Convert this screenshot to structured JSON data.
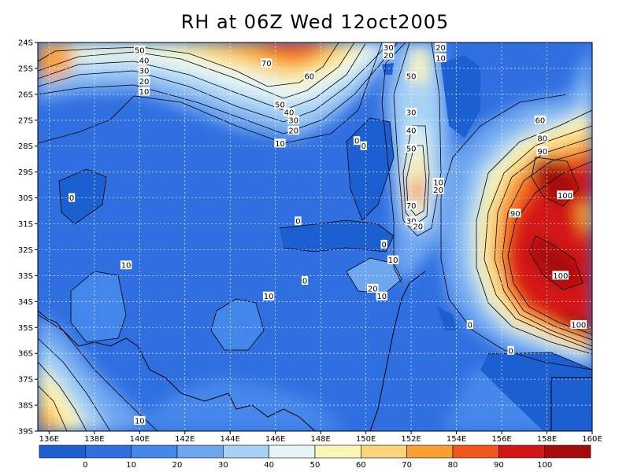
{
  "title": "RH at 06Z Wed 12oct2005",
  "chart_data": {
    "type": "heatmap",
    "title": "RH at 06Z Wed 12oct2005",
    "lon_ticks": [
      "136E",
      "138E",
      "140E",
      "142E",
      "144E",
      "146E",
      "148E",
      "150E",
      "152E",
      "154E",
      "156E",
      "158E",
      "160E"
    ],
    "lat_ticks": [
      "24S",
      "25S",
      "26S",
      "27S",
      "28S",
      "29S",
      "30S",
      "31S",
      "32S",
      "33S",
      "34S",
      "35S",
      "36S",
      "37S",
      "38S",
      "39S"
    ],
    "lon_range": [
      135.5,
      160
    ],
    "lat_range": [
      -39,
      -24
    ],
    "grid": true,
    "colorbar": {
      "levels": [
        "0",
        "10",
        "20",
        "30",
        "40",
        "50",
        "60",
        "70",
        "80",
        "90",
        "100"
      ],
      "colors": [
        "#1b5fd0",
        "#2f6fe0",
        "#4487ea",
        "#6fa6f0",
        "#a6d2f5",
        "#e6f5f5",
        "#fbf6b3",
        "#fbd47c",
        "#f9a033",
        "#f3561e",
        "#d51616",
        "#a60b0b"
      ]
    },
    "contour_labels": [
      {
        "t": "50",
        "lon": 140.0,
        "lat": -24.3
      },
      {
        "t": "40",
        "lon": 140.2,
        "lat": -24.7
      },
      {
        "t": "30",
        "lon": 140.2,
        "lat": -25.1
      },
      {
        "t": "20",
        "lon": 140.2,
        "lat": -25.5
      },
      {
        "t": "10",
        "lon": 140.2,
        "lat": -25.9
      },
      {
        "t": "70",
        "lon": 145.6,
        "lat": -24.8
      },
      {
        "t": "60",
        "lon": 147.5,
        "lat": -25.3
      },
      {
        "t": "50",
        "lon": 146.2,
        "lat": -26.4
      },
      {
        "t": "40",
        "lon": 146.6,
        "lat": -26.7
      },
      {
        "t": "30",
        "lon": 146.8,
        "lat": -27.0
      },
      {
        "t": "20",
        "lon": 146.8,
        "lat": -27.4
      },
      {
        "t": "10",
        "lon": 146.2,
        "lat": -27.9
      },
      {
        "t": "30",
        "lon": 151.0,
        "lat": -24.2
      },
      {
        "t": "20",
        "lon": 151.0,
        "lat": -24.5
      },
      {
        "t": "20",
        "lon": 153.3,
        "lat": -24.2
      },
      {
        "t": "10",
        "lon": 153.3,
        "lat": -24.6
      },
      {
        "t": "50",
        "lon": 152.0,
        "lat": -25.3
      },
      {
        "t": "30",
        "lon": 152.0,
        "lat": -26.7
      },
      {
        "t": "40",
        "lon": 152.0,
        "lat": -27.4
      },
      {
        "t": "50",
        "lon": 152.0,
        "lat": -28.1
      },
      {
        "t": "0",
        "lon": 149.6,
        "lat": -27.8
      },
      {
        "t": "0",
        "lon": 149.9,
        "lat": -28.0
      },
      {
        "t": "0",
        "lon": 137.0,
        "lat": -30.0
      },
      {
        "t": "10",
        "lon": 153.2,
        "lat": -29.4
      },
      {
        "t": "20",
        "lon": 153.2,
        "lat": -29.7
      },
      {
        "t": "70",
        "lon": 152.0,
        "lat": -30.3
      },
      {
        "t": "30",
        "lon": 152.0,
        "lat": -30.9
      },
      {
        "t": "20",
        "lon": 152.3,
        "lat": -31.1
      },
      {
        "t": "0",
        "lon": 147.0,
        "lat": -30.9
      },
      {
        "t": "0",
        "lon": 150.8,
        "lat": -31.8
      },
      {
        "t": "10",
        "lon": 151.2,
        "lat": -32.4
      },
      {
        "t": "10",
        "lon": 139.4,
        "lat": -32.6
      },
      {
        "t": "0",
        "lon": 147.3,
        "lat": -33.2
      },
      {
        "t": "20",
        "lon": 150.3,
        "lat": -33.5
      },
      {
        "t": "10",
        "lon": 150.7,
        "lat": -33.8
      },
      {
        "t": "10",
        "lon": 145.7,
        "lat": -33.8
      },
      {
        "t": "0",
        "lon": 154.6,
        "lat": -34.9
      },
      {
        "t": "0",
        "lon": 156.4,
        "lat": -35.9
      },
      {
        "t": "60",
        "lon": 157.7,
        "lat": -27.0
      },
      {
        "t": "80",
        "lon": 157.8,
        "lat": -27.7
      },
      {
        "t": "90",
        "lon": 157.8,
        "lat": -28.2
      },
      {
        "t": "100",
        "lon": 158.8,
        "lat": -29.9
      },
      {
        "t": "90",
        "lon": 156.6,
        "lat": -30.6
      },
      {
        "t": "100",
        "lon": 158.6,
        "lat": -33.0
      },
      {
        "t": "100",
        "lon": 159.4,
        "lat": -34.9
      },
      {
        "t": "10",
        "lon": 140.0,
        "lat": -38.6
      }
    ]
  }
}
